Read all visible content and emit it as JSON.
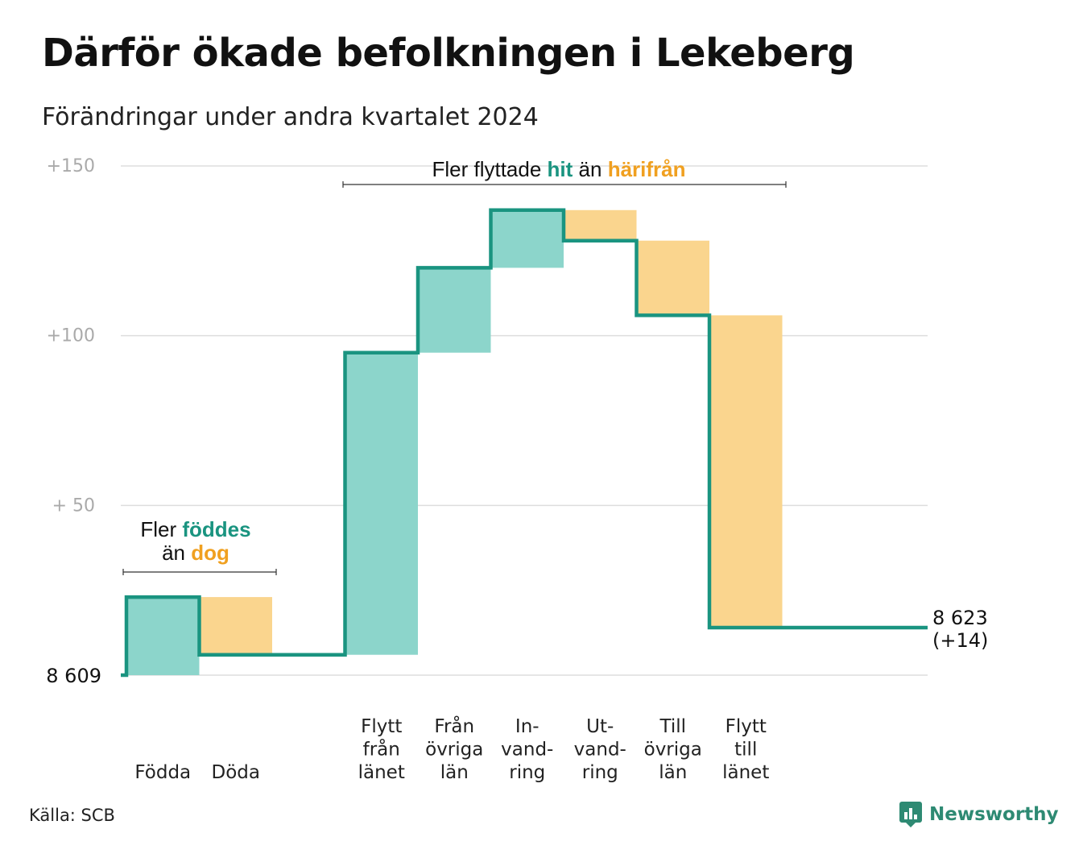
{
  "header": {
    "title": "Därför ökade befolkningen i Lekeberg",
    "subtitle": "Förändringar under andra kvartalet 2024"
  },
  "footer": {
    "source": "Källa: SCB",
    "brand": "Newsworthy"
  },
  "colors": {
    "positive_fill": "#8cd5cb",
    "negative_fill": "#fad58e",
    "line": "#1a9480",
    "accent_teal": "#1a9480",
    "accent_orange": "#f0a020",
    "grid": "#dddddd",
    "tick_text": "#aaaaaa"
  },
  "chart_data": {
    "type": "waterfall",
    "baseline_value": 0,
    "baseline_label": "8  609",
    "end_value": 14,
    "end_label": "8 623",
    "end_change_label": "(+14)",
    "ylim": [
      0,
      150
    ],
    "yticks": [
      {
        "value": 0,
        "label": ""
      },
      {
        "value": 50,
        "label": "+  50"
      },
      {
        "value": 100,
        "label": "+100"
      },
      {
        "value": 150,
        "label": "+150"
      }
    ],
    "grid": true,
    "steps": [
      {
        "label_lines": [
          "Födda"
        ],
        "change": 23
      },
      {
        "label_lines": [
          "Döda"
        ],
        "change": -17
      },
      {
        "label_lines": [
          ""
        ],
        "change": 0
      },
      {
        "label_lines": [
          "Flytt",
          "från",
          "länet"
        ],
        "change": 89
      },
      {
        "label_lines": [
          "Från",
          "övriga",
          "län"
        ],
        "change": 25
      },
      {
        "label_lines": [
          "In-",
          "vand-",
          "ring"
        ],
        "change": 17
      },
      {
        "label_lines": [
          "Ut-",
          "vand-",
          "ring"
        ],
        "change": -9
      },
      {
        "label_lines": [
          "Till",
          "övriga",
          "län"
        ],
        "change": -22
      },
      {
        "label_lines": [
          "Flytt",
          "till",
          "länet"
        ],
        "change": -92
      }
    ],
    "annotations": [
      {
        "id": "births",
        "parts": [
          {
            "line": 0,
            "text": "Fler ",
            "color": "plain"
          },
          {
            "line": 0,
            "text": "föddes",
            "color": "teal"
          },
          {
            "line": 1,
            "text": "än ",
            "color": "plain"
          },
          {
            "line": 1,
            "text": "dog",
            "color": "orange"
          }
        ]
      },
      {
        "id": "moves",
        "parts": [
          {
            "line": 0,
            "text": "Fler flyttade ",
            "color": "plain"
          },
          {
            "line": 0,
            "text": "hit",
            "color": "teal"
          },
          {
            "line": 0,
            "text": " än ",
            "color": "plain"
          },
          {
            "line": 0,
            "text": "härifrån",
            "color": "orange"
          }
        ]
      }
    ]
  }
}
